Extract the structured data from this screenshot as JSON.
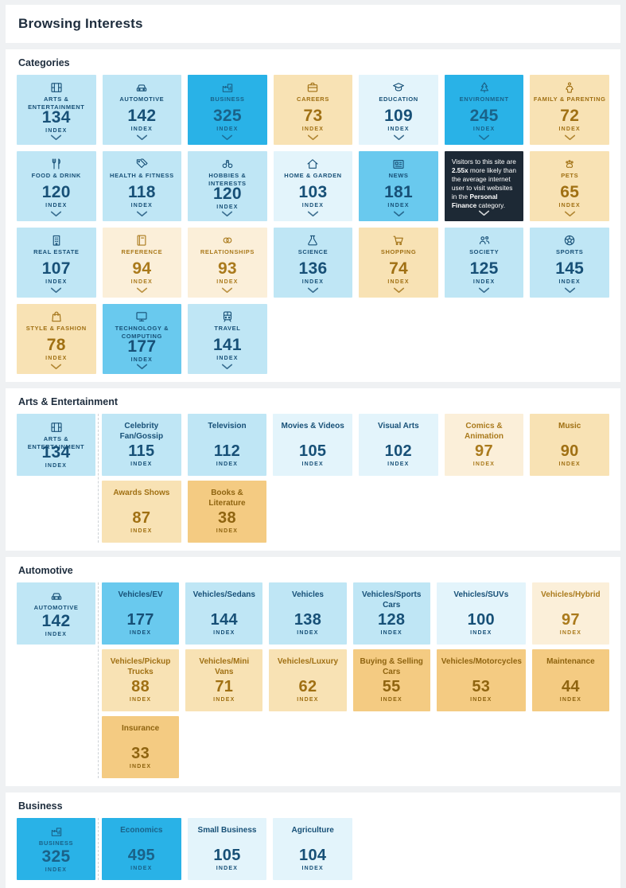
{
  "header": {
    "title": "Browsing Interests"
  },
  "index_label": "INDEX",
  "tones": {
    "blue-4": {
      "bg": "#29B2E7",
      "fg": "#1A6289"
    },
    "blue-3": {
      "bg": "#69C9EE",
      "fg": "#175077"
    },
    "blue-2": {
      "bg": "#BFE6F5",
      "fg": "#175077"
    },
    "blue-1": {
      "bg": "#E3F4FB",
      "fg": "#175077"
    },
    "tan-1": {
      "bg": "#FBEFD9",
      "fg": "#AA7A1C"
    },
    "tan-2": {
      "bg": "#F8E2B4",
      "fg": "#A0701371"
    },
    "tan-2f": {
      "bg": "#F8E2B4",
      "fg": "#A07013"
    },
    "tan-3": {
      "bg": "#F4CB82",
      "fg": "#8F6410"
    },
    "dark": {
      "bg": "#1D2935",
      "fg": "#FFFFFF"
    }
  },
  "sections": [
    {
      "slug": "categories",
      "heading": "Categories",
      "layout": "grid",
      "tiles": [
        {
          "label": "Arts & Entertainment",
          "icon": "film-icon",
          "value": "134",
          "tone": "blue-2"
        },
        {
          "label": "Automotive",
          "icon": "car-icon",
          "value": "142",
          "tone": "blue-2"
        },
        {
          "label": "Business",
          "icon": "factory-icon",
          "value": "325",
          "tone": "blue-4"
        },
        {
          "label": "Careers",
          "icon": "briefcase-icon",
          "value": "73",
          "tone": "tan-2f"
        },
        {
          "label": "Education",
          "icon": "graduation-cap-icon",
          "value": "109",
          "tone": "blue-1"
        },
        {
          "label": "Environment",
          "icon": "tree-icon",
          "value": "245",
          "tone": "blue-4"
        },
        {
          "label": "Family & Parenting",
          "icon": "child-icon",
          "value": "72",
          "tone": "tan-2f"
        },
        {
          "label": "Food & Drink",
          "icon": "utensils-icon",
          "value": "120",
          "tone": "blue-2"
        },
        {
          "label": "Health & Fitness",
          "icon": "tags-icon",
          "value": "118",
          "tone": "blue-2"
        },
        {
          "label": "Hobbies & Interests",
          "icon": "binoculars-icon",
          "value": "120",
          "tone": "blue-2"
        },
        {
          "label": "Home & Garden",
          "icon": "house-icon",
          "value": "103",
          "tone": "blue-1"
        },
        {
          "label": "News",
          "icon": "newspaper-icon",
          "value": "181",
          "tone": "blue-3"
        },
        {
          "type": "tooltip",
          "tone": "dark",
          "segments": [
            {
              "t": "Visitors to this site are ",
              "b": false
            },
            {
              "t": "2.55x",
              "b": true
            },
            {
              "t": " more likely than the average internet user to visit websites in the ",
              "b": false
            },
            {
              "t": "Personal Finance",
              "b": true
            },
            {
              "t": " category.",
              "b": false
            }
          ]
        },
        {
          "label": "Pets",
          "icon": "paw-icon",
          "value": "65",
          "tone": "tan-2f"
        },
        {
          "label": "Real Estate",
          "icon": "building-icon",
          "value": "107",
          "tone": "blue-2"
        },
        {
          "label": "Reference",
          "icon": "book-icon",
          "value": "94",
          "tone": "tan-1"
        },
        {
          "label": "Relationships",
          "icon": "rings-icon",
          "value": "93",
          "tone": "tan-1"
        },
        {
          "label": "Science",
          "icon": "flask-icon",
          "value": "136",
          "tone": "blue-2"
        },
        {
          "label": "Shopping",
          "icon": "cart-icon",
          "value": "74",
          "tone": "tan-2f"
        },
        {
          "label": "Society",
          "icon": "people-icon",
          "value": "125",
          "tone": "blue-2"
        },
        {
          "label": "Sports",
          "icon": "ball-icon",
          "value": "145",
          "tone": "blue-2"
        },
        {
          "label": "Style & Fashion",
          "icon": "bag-icon",
          "value": "78",
          "tone": "tan-2f"
        },
        {
          "label": "Technology & Computing",
          "icon": "monitor-icon",
          "value": "177",
          "tone": "blue-3"
        },
        {
          "label": "Travel",
          "icon": "train-icon",
          "value": "141",
          "tone": "blue-2"
        }
      ]
    },
    {
      "slug": "arts-entertainment",
      "heading": "Arts & Entertainment",
      "layout": "drilldown",
      "parent": {
        "label": "Arts & Entertainment",
        "icon": "film-icon",
        "value": "134",
        "tone": "blue-2"
      },
      "tiles": [
        {
          "label": "Celebrity Fan/Gossip",
          "value": "115",
          "tone": "blue-2"
        },
        {
          "label": "Television",
          "value": "112",
          "tone": "blue-2"
        },
        {
          "label": "Movies & Videos",
          "value": "105",
          "tone": "blue-1"
        },
        {
          "label": "Visual Arts",
          "value": "102",
          "tone": "blue-1"
        },
        {
          "label": "Comics & Animation",
          "value": "97",
          "tone": "tan-1"
        },
        {
          "label": "Music",
          "value": "90",
          "tone": "tan-2f"
        },
        {
          "label": "Awards Shows",
          "value": "87",
          "tone": "tan-2f"
        },
        {
          "label": "Books & Literature",
          "value": "38",
          "tone": "tan-3"
        }
      ]
    },
    {
      "slug": "automotive",
      "heading": "Automotive",
      "layout": "drilldown",
      "parent": {
        "label": "Automotive",
        "icon": "car-icon",
        "value": "142",
        "tone": "blue-2"
      },
      "tiles": [
        {
          "label": "Vehicles/EV",
          "value": "177",
          "tone": "blue-3"
        },
        {
          "label": "Vehicles/Sedans",
          "value": "144",
          "tone": "blue-2"
        },
        {
          "label": "Vehicles",
          "value": "138",
          "tone": "blue-2"
        },
        {
          "label": "Vehicles/Sports Cars",
          "value": "128",
          "tone": "blue-2"
        },
        {
          "label": "Vehicles/SUVs",
          "value": "100",
          "tone": "blue-1"
        },
        {
          "label": "Vehicles/Hybrid",
          "value": "97",
          "tone": "tan-1"
        },
        {
          "label": "Vehicles/Pickup Trucks",
          "value": "88",
          "tone": "tan-2f"
        },
        {
          "label": "Vehicles/Mini Vans",
          "value": "71",
          "tone": "tan-2f"
        },
        {
          "label": "Vehicles/Luxury",
          "value": "62",
          "tone": "tan-2f"
        },
        {
          "label": "Buying & Selling Cars",
          "value": "55",
          "tone": "tan-3"
        },
        {
          "label": "Vehicles/Motorcycles",
          "value": "53",
          "tone": "tan-3"
        },
        {
          "label": "Maintenance",
          "value": "44",
          "tone": "tan-3"
        },
        {
          "label": "Insurance",
          "value": "33",
          "tone": "tan-3"
        }
      ]
    },
    {
      "slug": "business",
      "heading": "Business",
      "layout": "drilldown",
      "parent": {
        "label": "Business",
        "icon": "factory-icon",
        "value": "325",
        "tone": "blue-4"
      },
      "tiles": [
        {
          "label": "Economics",
          "value": "495",
          "tone": "blue-4"
        },
        {
          "label": "Small Business",
          "value": "105",
          "tone": "blue-1"
        },
        {
          "label": "Agriculture",
          "value": "104",
          "tone": "blue-1"
        }
      ]
    }
  ]
}
